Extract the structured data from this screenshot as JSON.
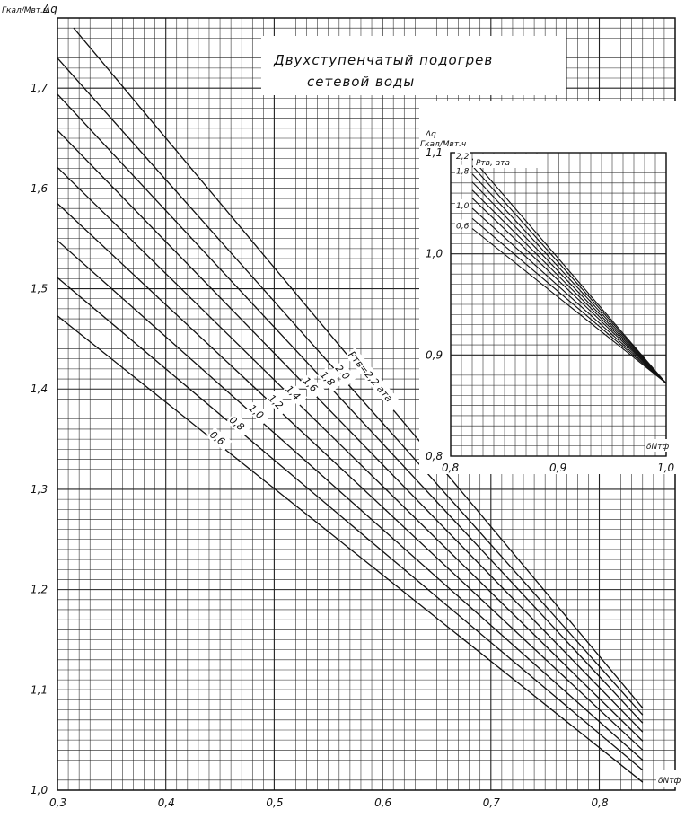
{
  "chart_data": [
    {
      "type": "line",
      "title": "Двухступенчатый подогрев сетевой воды",
      "xlabel": "δNтф",
      "ylabel": "Δq",
      "yunit": "Гкал/Мвт.ч",
      "xlim": [
        0.3,
        0.87
      ],
      "ylim": [
        1.0,
        1.77
      ],
      "x_ticks": [
        "0,3",
        "0,4",
        "0,5",
        "0,6",
        "0,7",
        "0,8"
      ],
      "y_ticks": [
        "1,0",
        "1,1",
        "1,2",
        "1,3",
        "1,4",
        "1,5",
        "1,6",
        "1,7"
      ],
      "x_tick_values": [
        0.3,
        0.4,
        0.5,
        0.6,
        0.7,
        0.8
      ],
      "y_tick_values": [
        1.0,
        1.1,
        1.2,
        1.3,
        1.4,
        1.5,
        1.6,
        1.7
      ],
      "grid": true,
      "series": [
        {
          "name": "0,6",
          "x": [
            0.3,
            0.84
          ],
          "y": [
            1.473,
            1.008
          ]
        },
        {
          "name": "0,8",
          "x": [
            0.3,
            0.84
          ],
          "y": [
            1.511,
            1.02
          ]
        },
        {
          "name": "1,0",
          "x": [
            0.3,
            0.84
          ],
          "y": [
            1.548,
            1.03
          ]
        },
        {
          "name": "1,2",
          "x": [
            0.3,
            0.84
          ],
          "y": [
            1.585,
            1.04
          ]
        },
        {
          "name": "1,4",
          "x": [
            0.3,
            0.84
          ],
          "y": [
            1.621,
            1.049
          ]
        },
        {
          "name": "1,6",
          "x": [
            0.3,
            0.84
          ],
          "y": [
            1.658,
            1.058
          ]
        },
        {
          "name": "1,8",
          "x": [
            0.3,
            0.84
          ],
          "y": [
            1.694,
            1.067
          ]
        },
        {
          "name": "2,0",
          "x": [
            0.3,
            0.84
          ],
          "y": [
            1.73,
            1.075
          ]
        },
        {
          "name": "Pтв=2,2 ата",
          "x": [
            0.315,
            0.84
          ],
          "y": [
            1.76,
            1.082
          ]
        }
      ]
    },
    {
      "type": "line",
      "title": "",
      "xlabel": "δNтф",
      "ylabel": "Δq",
      "yunit": "Гкал/Мвт.ч",
      "legend_title": "Pтв, ата",
      "xlim": [
        0.8,
        1.0
      ],
      "ylim": [
        0.8,
        1.1
      ],
      "x_ticks": [
        "0,8",
        "0,9",
        "1,0"
      ],
      "y_ticks": [
        "0,8",
        "0,9",
        "1,0",
        "1,1"
      ],
      "x_tick_values": [
        0.8,
        0.9,
        1.0
      ],
      "y_tick_values": [
        0.8,
        0.9,
        1.0,
        1.1
      ],
      "grid": true,
      "series": [
        {
          "name": "0,6",
          "x": [
            0.82,
            1.0
          ],
          "y": [
            1.025,
            0.872
          ]
        },
        {
          "name": "0,8",
          "x": [
            0.82,
            1.0
          ],
          "y": [
            1.035,
            0.872
          ]
        },
        {
          "name": "1,0",
          "x": [
            0.82,
            1.0
          ],
          "y": [
            1.045,
            0.872
          ]
        },
        {
          "name": "1,2",
          "x": [
            0.82,
            1.0
          ],
          "y": [
            1.055,
            0.872
          ]
        },
        {
          "name": "1,4",
          "x": [
            0.82,
            1.0
          ],
          "y": [
            1.063,
            0.872
          ]
        },
        {
          "name": "1,6",
          "x": [
            0.82,
            1.0
          ],
          "y": [
            1.071,
            0.872
          ]
        },
        {
          "name": "1,8",
          "x": [
            0.82,
            1.0
          ],
          "y": [
            1.079,
            0.872
          ]
        },
        {
          "name": "2,0",
          "x": [
            0.82,
            1.0
          ],
          "y": [
            1.087,
            0.872
          ]
        },
        {
          "name": "2,2",
          "x": [
            0.82,
            1.0
          ],
          "y": [
            1.094,
            0.872
          ]
        }
      ],
      "series_labels_shown": [
        "2,2",
        "1,8",
        "1,0",
        "0,6"
      ]
    }
  ]
}
